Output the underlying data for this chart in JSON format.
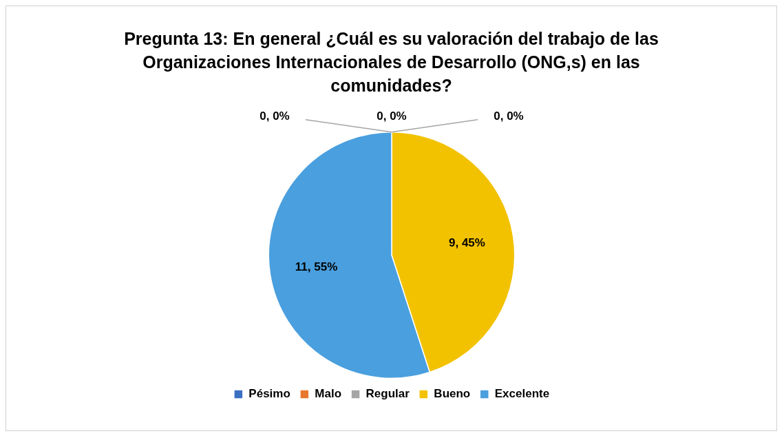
{
  "chart_data": {
    "type": "pie",
    "title": "Pregunta 13:  En general ¿Cuál es su valoración del trabajo de las Organizaciones Internacionales de Desarrollo (ONG,s) en las comunidades?",
    "categories": [
      "Pésimo",
      "Malo",
      "Regular",
      "Bueno",
      "Excelente"
    ],
    "values": [
      0,
      0,
      0,
      9,
      11
    ],
    "value_labels": [
      "0, 0%",
      "0, 0%",
      "0, 0%",
      "9, 45%",
      "11, 55%"
    ],
    "colors": [
      "#3b6fc2",
      "#e8772e",
      "#a5a5a5",
      "#f2c200",
      "#4a9fde"
    ],
    "legend": "bottom"
  }
}
